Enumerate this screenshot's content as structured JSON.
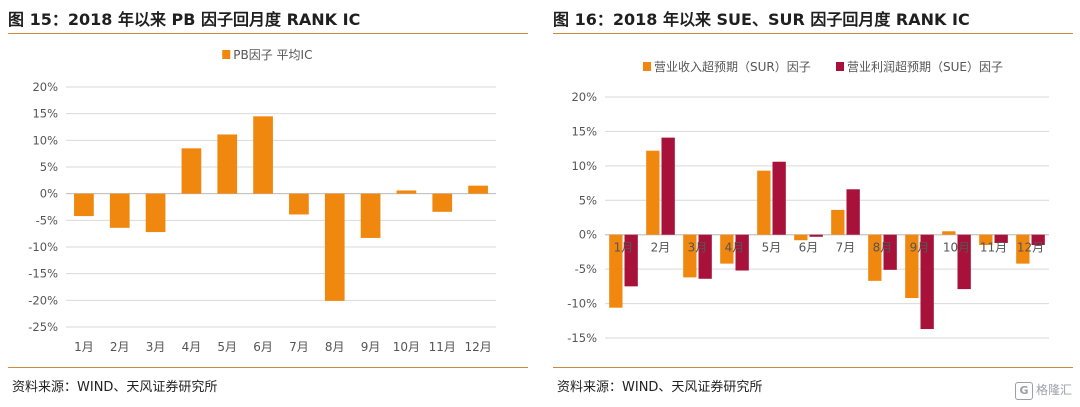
{
  "watermark": {
    "text": "格隆汇",
    "icon": "G"
  },
  "colors": {
    "orange": "#f0870f",
    "crimson": "#a8123a",
    "rule": "#c98a3c",
    "grid": "#d9d9d9"
  },
  "panels": [
    {
      "title": "图 15：2018 年以来 PB 因子回月度 RANK IC",
      "source": "资料来源：WIND、天风证券研究所"
    },
    {
      "title": "图 16：2018 年以来 SUE、SUR 因子回月度 RANK IC",
      "source": "资料来源：WIND、天风证券研究所"
    }
  ],
  "chart_data": [
    {
      "type": "bar",
      "categories": [
        "1月",
        "2月",
        "3月",
        "4月",
        "5月",
        "6月",
        "7月",
        "8月",
        "9月",
        "10月",
        "11月",
        "12月"
      ],
      "series": [
        {
          "name": "PB因子 平均IC",
          "color": "#f0870f",
          "values": [
            -4.2,
            -6.4,
            -7.2,
            8.5,
            11.1,
            14.5,
            -3.9,
            -20.1,
            -8.3,
            0.6,
            -3.4,
            1.5
          ]
        }
      ],
      "ylim": [
        -25,
        20
      ],
      "yticks": [
        -25,
        -20,
        -15,
        -10,
        -5,
        0,
        5,
        10,
        15,
        20
      ],
      "ytick_labels": [
        "-25%",
        "-20%",
        "-15%",
        "-10%",
        "-5%",
        "0%",
        "5%",
        "10%",
        "15%",
        "20%"
      ],
      "grid": true,
      "legend": "top-center",
      "tick_position": "bottom"
    },
    {
      "type": "bar",
      "categories": [
        "1月",
        "2月",
        "3月",
        "4月",
        "5月",
        "6月",
        "7月",
        "8月",
        "9月",
        "10月",
        "11月",
        "12月"
      ],
      "series": [
        {
          "name": "营业收入超预期（SUR）因子",
          "color": "#f0870f",
          "values": [
            -10.6,
            12.2,
            -6.2,
            -4.2,
            9.3,
            -0.8,
            3.6,
            -6.7,
            -9.2,
            0.5,
            -1.5,
            -4.2
          ]
        },
        {
          "name": "营业利润超预期（SUE）因子",
          "color": "#a8123a",
          "values": [
            -7.5,
            14.1,
            -6.4,
            -5.2,
            10.6,
            -0.3,
            6.6,
            -5.1,
            -13.7,
            -7.9,
            -1.2,
            -1.5
          ]
        }
      ],
      "ylim": [
        -15,
        20
      ],
      "yticks": [
        -15,
        -10,
        -5,
        0,
        5,
        10,
        15,
        20
      ],
      "ytick_labels": [
        "-15%",
        "-10%",
        "-5%",
        "0%",
        "5%",
        "10%",
        "15%",
        "20%"
      ],
      "grid": true,
      "legend": "top-center",
      "tick_position": "axis"
    }
  ]
}
